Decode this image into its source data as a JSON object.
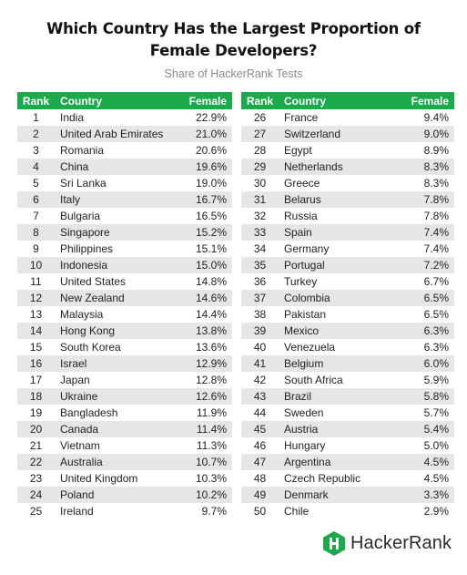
{
  "title_line1": "Which Country Has the Largest Proportion of",
  "title_line2": "Female Developers?",
  "subtitle": "Share of HackerRank Tests",
  "columns": {
    "rank": "Rank",
    "country": "Country",
    "female": "Female"
  },
  "brand": {
    "name": "HackerRank",
    "color": "#1ba94c"
  },
  "colors": {
    "header_bg": "#1ba94c",
    "stripe_bg": "#e6e6e6"
  },
  "chart_data": {
    "type": "table",
    "title": "Which Country Has the Largest Proportion of Female Developers?",
    "subtitle": "Share of HackerRank Tests",
    "columns": [
      "Rank",
      "Country",
      "Female"
    ],
    "rows": [
      {
        "rank": "1",
        "country": "India",
        "female": "22.9%"
      },
      {
        "rank": "2",
        "country": "United Arab Emirates",
        "female": "21.0%"
      },
      {
        "rank": "3",
        "country": "Romania",
        "female": "20.6%"
      },
      {
        "rank": "4",
        "country": "China",
        "female": "19.6%"
      },
      {
        "rank": "5",
        "country": "Sri Lanka",
        "female": "19.0%"
      },
      {
        "rank": "6",
        "country": "Italy",
        "female": "16.7%"
      },
      {
        "rank": "7",
        "country": "Bulgaria",
        "female": "16.5%"
      },
      {
        "rank": "8",
        "country": "Singapore",
        "female": "15.2%"
      },
      {
        "rank": "9",
        "country": "Philippines",
        "female": "15.1%"
      },
      {
        "rank": "10",
        "country": "Indonesia",
        "female": "15.0%"
      },
      {
        "rank": "11",
        "country": "United States",
        "female": "14.8%"
      },
      {
        "rank": "12",
        "country": "New Zealand",
        "female": "14.6%"
      },
      {
        "rank": "13",
        "country": "Malaysia",
        "female": "14.4%"
      },
      {
        "rank": "14",
        "country": "Hong Kong",
        "female": "13.8%"
      },
      {
        "rank": "15",
        "country": "South Korea",
        "female": "13.6%"
      },
      {
        "rank": "16",
        "country": "Israel",
        "female": "12.9%"
      },
      {
        "rank": "17",
        "country": "Japan",
        "female": "12.8%"
      },
      {
        "rank": "18",
        "country": "Ukraine",
        "female": "12.6%"
      },
      {
        "rank": "19",
        "country": "Bangladesh",
        "female": "11.9%"
      },
      {
        "rank": "20",
        "country": "Canada",
        "female": "11.4%"
      },
      {
        "rank": "21",
        "country": "Vietnam",
        "female": "11.3%"
      },
      {
        "rank": "22",
        "country": "Australia",
        "female": "10.7%"
      },
      {
        "rank": "23",
        "country": "United Kingdom",
        "female": "10.3%"
      },
      {
        "rank": "24",
        "country": "Poland",
        "female": "10.2%"
      },
      {
        "rank": "25",
        "country": "Ireland",
        "female": "9.7%"
      },
      {
        "rank": "26",
        "country": "France",
        "female": "9.4%"
      },
      {
        "rank": "27",
        "country": "Switzerland",
        "female": "9.0%"
      },
      {
        "rank": "28",
        "country": "Egypt",
        "female": "8.9%"
      },
      {
        "rank": "29",
        "country": "Netherlands",
        "female": "8.3%"
      },
      {
        "rank": "30",
        "country": "Greece",
        "female": "8.3%"
      },
      {
        "rank": "31",
        "country": "Belarus",
        "female": "7.8%"
      },
      {
        "rank": "32",
        "country": "Russia",
        "female": "7.8%"
      },
      {
        "rank": "33",
        "country": "Spain",
        "female": "7.4%"
      },
      {
        "rank": "34",
        "country": "Germany",
        "female": "7.4%"
      },
      {
        "rank": "35",
        "country": "Portugal",
        "female": "7.2%"
      },
      {
        "rank": "36",
        "country": "Turkey",
        "female": "6.7%"
      },
      {
        "rank": "37",
        "country": "Colombia",
        "female": "6.5%"
      },
      {
        "rank": "38",
        "country": "Pakistan",
        "female": "6.5%"
      },
      {
        "rank": "39",
        "country": "Mexico",
        "female": "6.3%"
      },
      {
        "rank": "40",
        "country": "Venezuela",
        "female": "6.3%"
      },
      {
        "rank": "41",
        "country": "Belgium",
        "female": "6.0%"
      },
      {
        "rank": "42",
        "country": "South Africa",
        "female": "5.9%"
      },
      {
        "rank": "43",
        "country": "Brazil",
        "female": "5.8%"
      },
      {
        "rank": "44",
        "country": "Sweden",
        "female": "5.7%"
      },
      {
        "rank": "45",
        "country": "Austria",
        "female": "5.4%"
      },
      {
        "rank": "46",
        "country": "Hungary",
        "female": "5.0%"
      },
      {
        "rank": "47",
        "country": "Argentina",
        "female": "4.5%"
      },
      {
        "rank": "48",
        "country": "Czech Republic",
        "female": "4.5%"
      },
      {
        "rank": "49",
        "country": "Denmark",
        "female": "3.3%"
      },
      {
        "rank": "50",
        "country": "Chile",
        "female": "2.9%"
      }
    ]
  }
}
